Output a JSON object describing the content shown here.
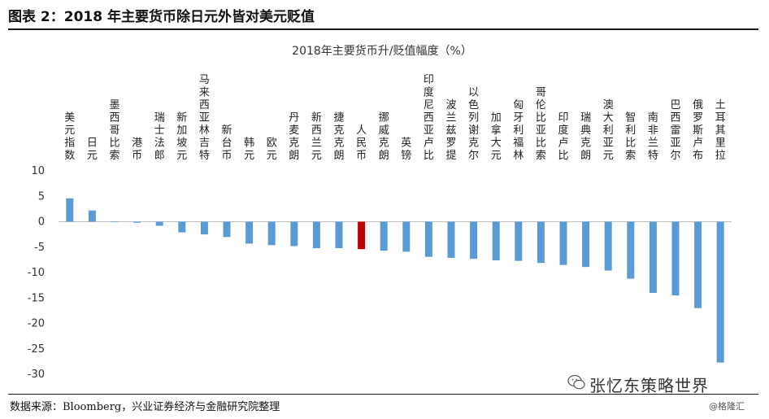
{
  "figure": {
    "title": "图表 2：2018 年主要货币除日元外皆对美元贬值",
    "source": "数据来源：Bloomberg，兴业证券经济与金融研究院整理",
    "watermark_main": "张忆东策略世界",
    "watermark_small": "@格隆汇"
  },
  "colors": {
    "bar": "#5B9BD5",
    "highlight_bar": "#C00000",
    "axis": "#BFBFBF"
  },
  "chart_data": {
    "type": "bar",
    "title": "2018年主要货币升/贬值幅度（%）",
    "xlabel": "",
    "ylabel": "",
    "ylim": [
      -30,
      10
    ],
    "yticks": [
      10,
      5,
      0,
      -5,
      -10,
      -15,
      -20,
      -25,
      -30
    ],
    "grid": false,
    "categories": [
      "美元指数",
      "日元",
      "墨西哥比索",
      "港币",
      "瑞士法郎",
      "新加坡元",
      "马来西亚林吉特",
      "新台币",
      "韩元",
      "欧元",
      "丹麦克朗",
      "新西兰元",
      "捷克克朗",
      "人民币",
      "挪威克朗",
      "英镑",
      "印度尼西亚卢比",
      "波兰兹罗提",
      "以色列谢克尔",
      "加拿大元",
      "匈牙利福林",
      "哥伦比亚比索",
      "印度卢比",
      "瑞典克朗",
      "澳大利亚元",
      "智利比索",
      "南非兰特",
      "巴西雷亚尔",
      "俄罗斯卢布",
      "土耳其里拉"
    ],
    "values": [
      4.6,
      2.2,
      0.0,
      -0.2,
      -0.8,
      -2.1,
      -2.5,
      -3.0,
      -4.3,
      -4.6,
      -4.8,
      -5.2,
      -5.2,
      -5.4,
      -5.7,
      -5.9,
      -6.9,
      -7.1,
      -7.3,
      -7.6,
      -7.7,
      -8.1,
      -8.5,
      -8.9,
      -9.6,
      -11.2,
      -14.0,
      -14.5,
      -17.0,
      -27.7
    ],
    "highlight": "人民币"
  }
}
